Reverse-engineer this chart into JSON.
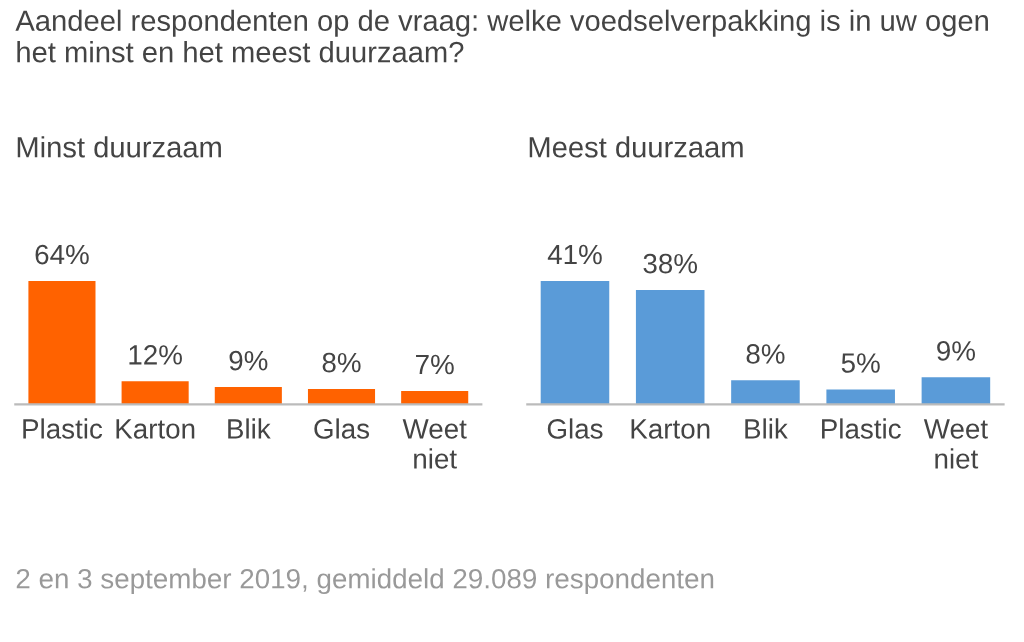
{
  "chart_data": [
    {
      "type": "bar",
      "title": "Aandeel respondenten op de vraag: welke voedselverpakking is in uw ogen het minst en het meest duurzaam?",
      "subtitle": "Minst duurzaam",
      "categories": [
        "Plastic",
        "Karton",
        "Blik",
        "Glas",
        "Weet niet"
      ],
      "values": [
        64,
        12,
        9,
        8,
        7
      ],
      "value_labels": [
        "64%",
        "12%",
        "9%",
        "8%",
        "7%"
      ],
      "color": "#ff6200",
      "annotations": [
        "2 en 3 september 2019, gemiddeld 29.089 respondenten"
      ]
    },
    {
      "type": "bar",
      "subtitle": "Meest duurzaam",
      "categories": [
        "Glas",
        "Karton",
        "Blik",
        "Plastic",
        "Weet niet"
      ],
      "values": [
        41,
        38,
        8,
        5,
        9
      ],
      "value_labels": [
        "41%",
        "38%",
        "8%",
        "5%",
        "9%"
      ],
      "color": "#5a9bd8"
    }
  ]
}
